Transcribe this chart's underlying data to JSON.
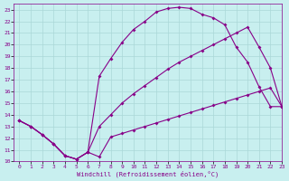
{
  "xlabel": "Windchill (Refroidissement éolien,°C)",
  "xlim": [
    -0.5,
    23
  ],
  "ylim": [
    10,
    23.5
  ],
  "xticks": [
    0,
    1,
    2,
    3,
    4,
    5,
    6,
    7,
    8,
    9,
    10,
    11,
    12,
    13,
    14,
    15,
    16,
    17,
    18,
    19,
    20,
    21,
    22,
    23
  ],
  "yticks": [
    10,
    11,
    12,
    13,
    14,
    15,
    16,
    17,
    18,
    19,
    20,
    21,
    22,
    23
  ],
  "bg_color": "#c8efef",
  "grid_color": "#aad8d8",
  "line_color": "#880088",
  "curves": [
    {
      "x": [
        0,
        1,
        2,
        3,
        4,
        5,
        6,
        7,
        8,
        9,
        10,
        11,
        12,
        13,
        14,
        15,
        16,
        17,
        18,
        19,
        20,
        21,
        22,
        23
      ],
      "y": [
        13.5,
        13.0,
        12.3,
        11.5,
        10.5,
        10.2,
        10.8,
        10.4,
        12.1,
        12.4,
        12.7,
        13.0,
        13.3,
        13.6,
        13.9,
        14.2,
        14.5,
        14.8,
        15.1,
        15.4,
        15.7,
        16.0,
        16.3,
        14.7
      ]
    },
    {
      "x": [
        0,
        1,
        2,
        3,
        4,
        5,
        6,
        7,
        8,
        9,
        10,
        11,
        12,
        13,
        14,
        15,
        16,
        17,
        18,
        19,
        20,
        21,
        22,
        23
      ],
      "y": [
        13.5,
        13.0,
        12.3,
        11.5,
        10.5,
        10.2,
        10.8,
        17.3,
        18.8,
        20.2,
        21.3,
        22.0,
        22.8,
        23.1,
        23.2,
        23.1,
        22.6,
        22.3,
        21.7,
        19.8,
        18.5,
        16.4,
        14.7,
        14.7
      ]
    },
    {
      "x": [
        0,
        1,
        2,
        3,
        4,
        5,
        6,
        7,
        8,
        9,
        10,
        11,
        12,
        13,
        14,
        15,
        16,
        17,
        18,
        19,
        20,
        21,
        22,
        23
      ],
      "y": [
        13.5,
        13.0,
        12.3,
        11.5,
        10.5,
        10.2,
        10.8,
        13.0,
        14.0,
        15.0,
        15.8,
        16.5,
        17.2,
        17.9,
        18.5,
        19.0,
        19.5,
        20.0,
        20.5,
        21.0,
        21.5,
        19.8,
        18.0,
        14.7
      ]
    }
  ],
  "markersize": 2.0,
  "linewidth": 0.8
}
